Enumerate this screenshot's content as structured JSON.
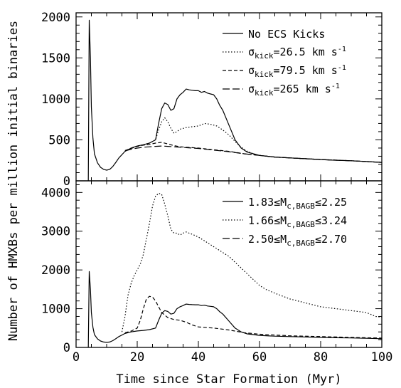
{
  "chart_data": [
    {
      "type": "line",
      "panel": "top",
      "xlabel": "",
      "ylabel": "",
      "xlim": [
        0,
        100
      ],
      "ylim": [
        0,
        2050
      ],
      "x_ticks": [
        "",
        "",
        "",
        "",
        "",
        ""
      ],
      "y_ticks": [
        "0",
        "500",
        "1000",
        "1500",
        "2000"
      ],
      "x_tick_values": [
        0,
        20,
        40,
        60,
        80,
        100
      ],
      "y_tick_values": [
        0,
        500,
        1000,
        1500,
        2000
      ],
      "legend_placement": "top-right",
      "series": [
        {
          "name": "No ECS Kicks",
          "dash": "solid",
          "x": [
            4,
            4.3,
            4.7,
            5.0,
            5.5,
            6,
            7,
            8,
            9,
            10,
            11,
            12,
            13,
            14,
            16,
            18,
            20,
            22,
            24,
            26,
            27,
            28,
            29,
            30,
            31,
            32,
            33,
            34,
            35,
            36,
            37,
            38,
            39,
            40,
            41,
            42,
            43,
            44,
            45,
            46,
            47,
            48,
            50,
            52,
            54,
            56,
            58,
            60,
            65,
            70,
            75,
            80,
            85,
            90,
            95,
            100
          ],
          "y": [
            0,
            1960,
            1500,
            900,
            520,
            330,
            220,
            165,
            140,
            130,
            140,
            175,
            225,
            280,
            360,
            400,
            425,
            440,
            460,
            500,
            700,
            880,
            950,
            930,
            860,
            880,
            1000,
            1050,
            1080,
            1120,
            1110,
            1105,
            1100,
            1100,
            1080,
            1090,
            1070,
            1060,
            1050,
            1000,
            920,
            860,
            680,
            500,
            400,
            350,
            330,
            310,
            290,
            280,
            270,
            260,
            250,
            245,
            235,
            225
          ]
        },
        {
          "name": "σkick=26.5 km s-1",
          "dash": "dotted",
          "x": [
            16,
            18,
            20,
            22,
            24,
            26,
            27,
            28,
            29,
            30,
            31,
            32,
            33,
            34,
            36,
            38,
            40,
            42,
            44,
            46,
            48,
            50,
            52,
            54,
            56,
            58,
            60,
            65,
            70,
            80,
            90,
            100
          ],
          "y": [
            360,
            400,
            425,
            440,
            460,
            500,
            620,
            720,
            770,
            720,
            640,
            580,
            600,
            630,
            650,
            660,
            670,
            700,
            690,
            670,
            620,
            560,
            480,
            410,
            360,
            330,
            310,
            290,
            280,
            260,
            245,
            225
          ]
        },
        {
          "name": "σkick=79.5 km s-1",
          "dash": "dashed",
          "x": [
            16,
            18,
            20,
            22,
            24,
            26,
            28,
            30,
            32,
            34,
            36,
            38,
            40,
            45,
            50,
            55,
            60,
            65,
            70,
            80,
            90,
            100
          ],
          "y": [
            370,
            395,
            420,
            435,
            445,
            460,
            470,
            450,
            430,
            415,
            410,
            405,
            400,
            380,
            360,
            330,
            310,
            290,
            280,
            260,
            245,
            225
          ]
        },
        {
          "name": "σkick=265 km s-1",
          "dash": "longdash",
          "x": [
            16,
            18,
            20,
            22,
            24,
            26,
            28,
            30,
            32,
            34,
            36,
            38,
            40,
            45,
            50,
            55,
            60,
            65,
            70,
            80,
            90,
            100
          ],
          "y": [
            365,
            385,
            400,
            410,
            415,
            420,
            425,
            420,
            415,
            410,
            405,
            400,
            395,
            375,
            355,
            330,
            310,
            290,
            280,
            260,
            245,
            225
          ]
        }
      ]
    },
    {
      "type": "line",
      "panel": "bottom",
      "xlabel": "Time since Star Formation (Myr)",
      "ylabel": "Number of HMXBs per million initial binaries",
      "xlim": [
        0,
        100
      ],
      "ylim": [
        0,
        4300
      ],
      "x_ticks": [
        "0",
        "20",
        "40",
        "60",
        "80",
        "100"
      ],
      "y_ticks": [
        "0",
        "1000",
        "2000",
        "3000",
        "4000"
      ],
      "x_tick_values": [
        0,
        20,
        40,
        60,
        80,
        100
      ],
      "y_tick_values": [
        0,
        1000,
        2000,
        3000,
        4000
      ],
      "legend_placement": "top-right",
      "series": [
        {
          "name": "1.83≤Mc,BAGB≤2.25",
          "dash": "solid",
          "x": [
            4,
            4.3,
            4.7,
            5.0,
            5.5,
            6,
            7,
            8,
            9,
            10,
            11,
            12,
            13,
            14,
            16,
            18,
            20,
            22,
            24,
            26,
            27,
            28,
            29,
            30,
            31,
            32,
            33,
            34,
            35,
            36,
            37,
            38,
            39,
            40,
            41,
            42,
            43,
            44,
            45,
            46,
            47,
            48,
            50,
            52,
            54,
            56,
            58,
            60,
            65,
            70,
            75,
            80,
            85,
            90,
            95,
            100
          ],
          "y": [
            0,
            1960,
            1500,
            900,
            520,
            330,
            220,
            165,
            140,
            130,
            140,
            175,
            225,
            280,
            360,
            400,
            425,
            440,
            460,
            500,
            700,
            880,
            950,
            930,
            860,
            880,
            1000,
            1050,
            1080,
            1120,
            1110,
            1105,
            1100,
            1100,
            1080,
            1090,
            1070,
            1060,
            1050,
            1000,
            920,
            860,
            680,
            500,
            400,
            350,
            330,
            310,
            290,
            280,
            270,
            260,
            250,
            245,
            235,
            225
          ]
        },
        {
          "name": "1.66≤Mc,BAGB≤3.24",
          "dash": "dotted",
          "x": [
            15,
            16,
            17,
            18,
            19,
            20,
            21,
            22,
            23,
            24,
            25,
            26,
            27,
            28,
            29,
            30,
            31,
            32,
            33,
            34,
            35,
            36,
            37,
            38,
            40,
            42,
            44,
            46,
            48,
            50,
            52,
            54,
            56,
            58,
            60,
            62,
            65,
            70,
            75,
            80,
            85,
            90,
            95,
            98,
            100
          ],
          "y": [
            400,
            800,
            1350,
            1650,
            1850,
            2000,
            2150,
            2400,
            2800,
            3200,
            3650,
            3900,
            3980,
            3950,
            3700,
            3400,
            3050,
            2950,
            2950,
            2900,
            2950,
            2980,
            2950,
            2920,
            2850,
            2750,
            2650,
            2550,
            2450,
            2350,
            2200,
            2050,
            1900,
            1750,
            1600,
            1500,
            1400,
            1250,
            1150,
            1050,
            1000,
            950,
            900,
            800,
            780
          ]
        },
        {
          "name": "2.50≤Mc,BAGB≤2.70",
          "dash": "dashed",
          "x": [
            16,
            18,
            20,
            21,
            22,
            23,
            24,
            25,
            26,
            27,
            28,
            30,
            32,
            34,
            36,
            38,
            40,
            45,
            50,
            55,
            60,
            65,
            70,
            80,
            90,
            100
          ],
          "y": [
            380,
            420,
            500,
            700,
            1000,
            1250,
            1320,
            1300,
            1200,
            1050,
            900,
            770,
            720,
            700,
            650,
            580,
            530,
            500,
            450,
            380,
            340,
            320,
            300,
            280,
            260,
            240
          ]
        }
      ]
    }
  ]
}
